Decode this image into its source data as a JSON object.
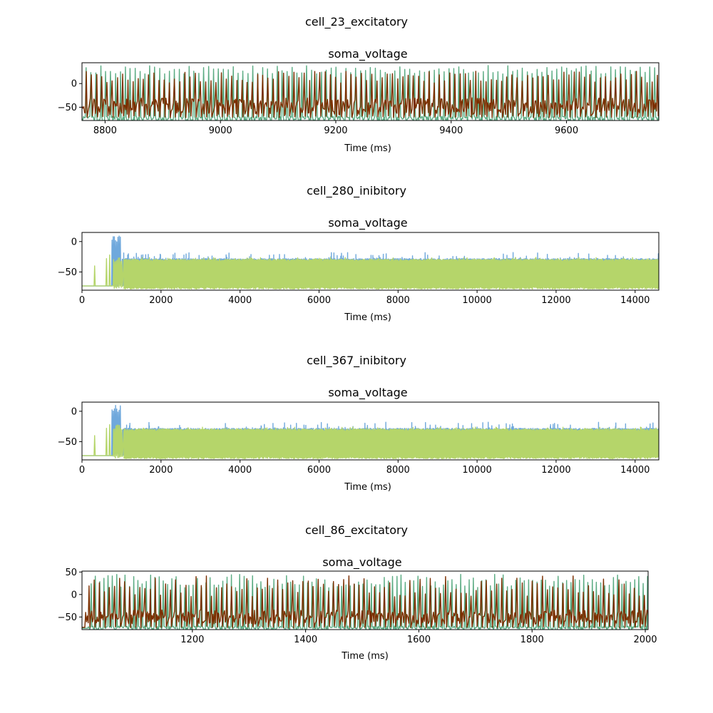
{
  "figure": {
    "background": "#ffffff"
  },
  "chart_data": [
    {
      "type": "line",
      "suptitle": "cell_23_excitatory",
      "title": "soma_voltage",
      "xlabel": "Time (ms)",
      "ylabel": "",
      "xlim": [
        8760,
        9760
      ],
      "ylim": [
        -78,
        44
      ],
      "xticks": [
        8800,
        9000,
        9200,
        9400,
        9600
      ],
      "yticks": [
        0,
        -50
      ],
      "grid": false,
      "legend": "none",
      "series": [
        {
          "color": "#5aab82",
          "style": "spiking",
          "rest": -75,
          "peak_range": [
            20,
            38
          ],
          "isi": 8.5,
          "t_onset": 8760,
          "noise": 6,
          "valley": -72
        },
        {
          "color": "#7b2f00",
          "style": "noisy-spiking",
          "rest": -48,
          "peak_range": [
            0,
            26
          ],
          "isi": 9,
          "t_onset": 8760,
          "noise": 18,
          "valley": -72
        }
      ]
    },
    {
      "type": "line",
      "suptitle": "cell_280_inibitory",
      "title": "soma_voltage",
      "xlabel": "Time (ms)",
      "ylabel": "",
      "xlim": [
        0,
        14600
      ],
      "ylim": [
        -80,
        15
      ],
      "xticks": [
        0,
        2000,
        4000,
        6000,
        8000,
        10000,
        12000,
        14000
      ],
      "yticks": [
        0,
        -50
      ],
      "grid": false,
      "legend": "none",
      "series": [
        {
          "color": "#6fa8dc",
          "style": "dense",
          "rest": -73,
          "onset": 760,
          "burst_peak": 10,
          "band": [
            -74,
            -32
          ],
          "spike_peak": [
            -32,
            -18
          ],
          "pre_spikes": []
        },
        {
          "color": "#b5d56a",
          "style": "dense",
          "rest": -73,
          "onset": 800,
          "burst_peak": -22,
          "band": [
            -78,
            -33
          ],
          "spike_peak": [
            -33,
            -26
          ],
          "pre_spikes": [
            [
              320,
              -40
            ],
            [
              620,
              -28
            ],
            [
              700,
              -22
            ]
          ]
        }
      ]
    },
    {
      "type": "line",
      "suptitle": "cell_367_inibitory",
      "title": "soma_voltage",
      "xlabel": "Time (ms)",
      "ylabel": "",
      "xlim": [
        0,
        14600
      ],
      "ylim": [
        -80,
        15
      ],
      "xticks": [
        0,
        2000,
        4000,
        6000,
        8000,
        10000,
        12000,
        14000
      ],
      "yticks": [
        0,
        -50
      ],
      "grid": false,
      "legend": "none",
      "series": [
        {
          "color": "#6fa8dc",
          "style": "dense",
          "rest": -73,
          "onset": 760,
          "burst_peak": 10,
          "band": [
            -74,
            -32
          ],
          "spike_peak": [
            -32,
            -18
          ],
          "pre_spikes": []
        },
        {
          "color": "#b5d56a",
          "style": "dense",
          "rest": -73,
          "onset": 800,
          "burst_peak": -22,
          "band": [
            -78,
            -33
          ],
          "spike_peak": [
            -33,
            -26
          ],
          "pre_spikes": [
            [
              320,
              -40
            ],
            [
              620,
              -28
            ],
            [
              700,
              -22
            ]
          ]
        }
      ]
    },
    {
      "type": "line",
      "suptitle": "cell_86_excitatory",
      "title": "soma_voltage",
      "xlabel": "Time (ms)",
      "ylabel": "",
      "xlim": [
        1005,
        2005
      ],
      "ylim": [
        -78,
        52
      ],
      "xticks": [
        1200,
        1400,
        1600,
        1800,
        2000
      ],
      "yticks": [
        50,
        0,
        -50
      ],
      "grid": false,
      "legend": "none",
      "series": [
        {
          "color": "#5aab82",
          "style": "spiking",
          "rest": -75,
          "peak_range": [
            15,
            45
          ],
          "isi": 7.5,
          "t_onset": 1015,
          "noise": 5,
          "valley": -74
        },
        {
          "color": "#7b2f00",
          "style": "noisy-spiking",
          "rest": -50,
          "peak_range": [
            -5,
            42
          ],
          "isi": 9,
          "t_onset": 1010,
          "noise": 16,
          "valley": -74,
          "pre_rest": -73
        }
      ]
    }
  ]
}
